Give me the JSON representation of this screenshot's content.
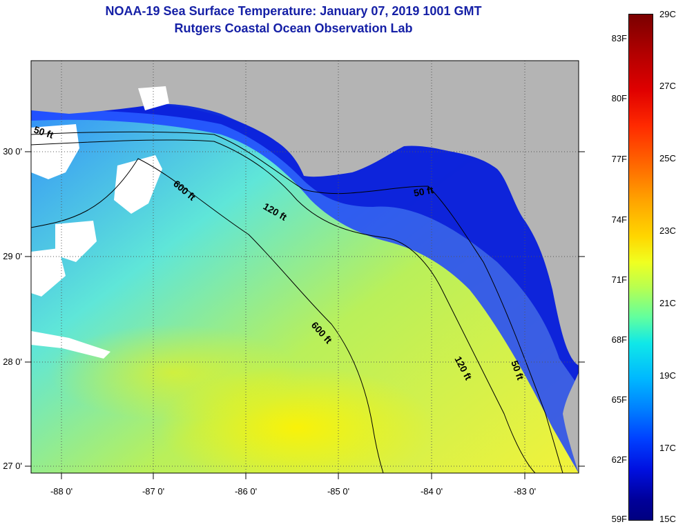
{
  "title": "NOAA-19 Sea Surface Temperature:  January 07, 2019 1001 GMT",
  "subtitle": "Rutgers Coastal Ocean Observation Lab",
  "map": {
    "land_color": "#b4b4b4",
    "cloud_color": "#ffffff",
    "latitude_labels": [
      "30 0'",
      "29 0'",
      "28 0'",
      "27 0'"
    ],
    "longitude_labels": [
      "-88 0'",
      "-87 0'",
      "-86 0'",
      "-85 0'",
      "-84 0'",
      "-83 0'"
    ],
    "depth_contours": [
      {
        "label": "50 ft"
      },
      {
        "label": "120 ft"
      },
      {
        "label": "600 ft"
      }
    ],
    "contour_labels": [
      "50 ft",
      "600 ft",
      "120 ft",
      "50 ft",
      "600 ft",
      "120 ft",
      "50 ft"
    ]
  },
  "colorbar": {
    "fahrenheit_labels": [
      "83F",
      "80F",
      "77F",
      "74F",
      "71F",
      "68F",
      "65F",
      "62F",
      "59F"
    ],
    "celsius_labels": [
      "29C",
      "27C",
      "25C",
      "23C",
      "21C",
      "19C",
      "17C",
      "15C"
    ]
  }
}
